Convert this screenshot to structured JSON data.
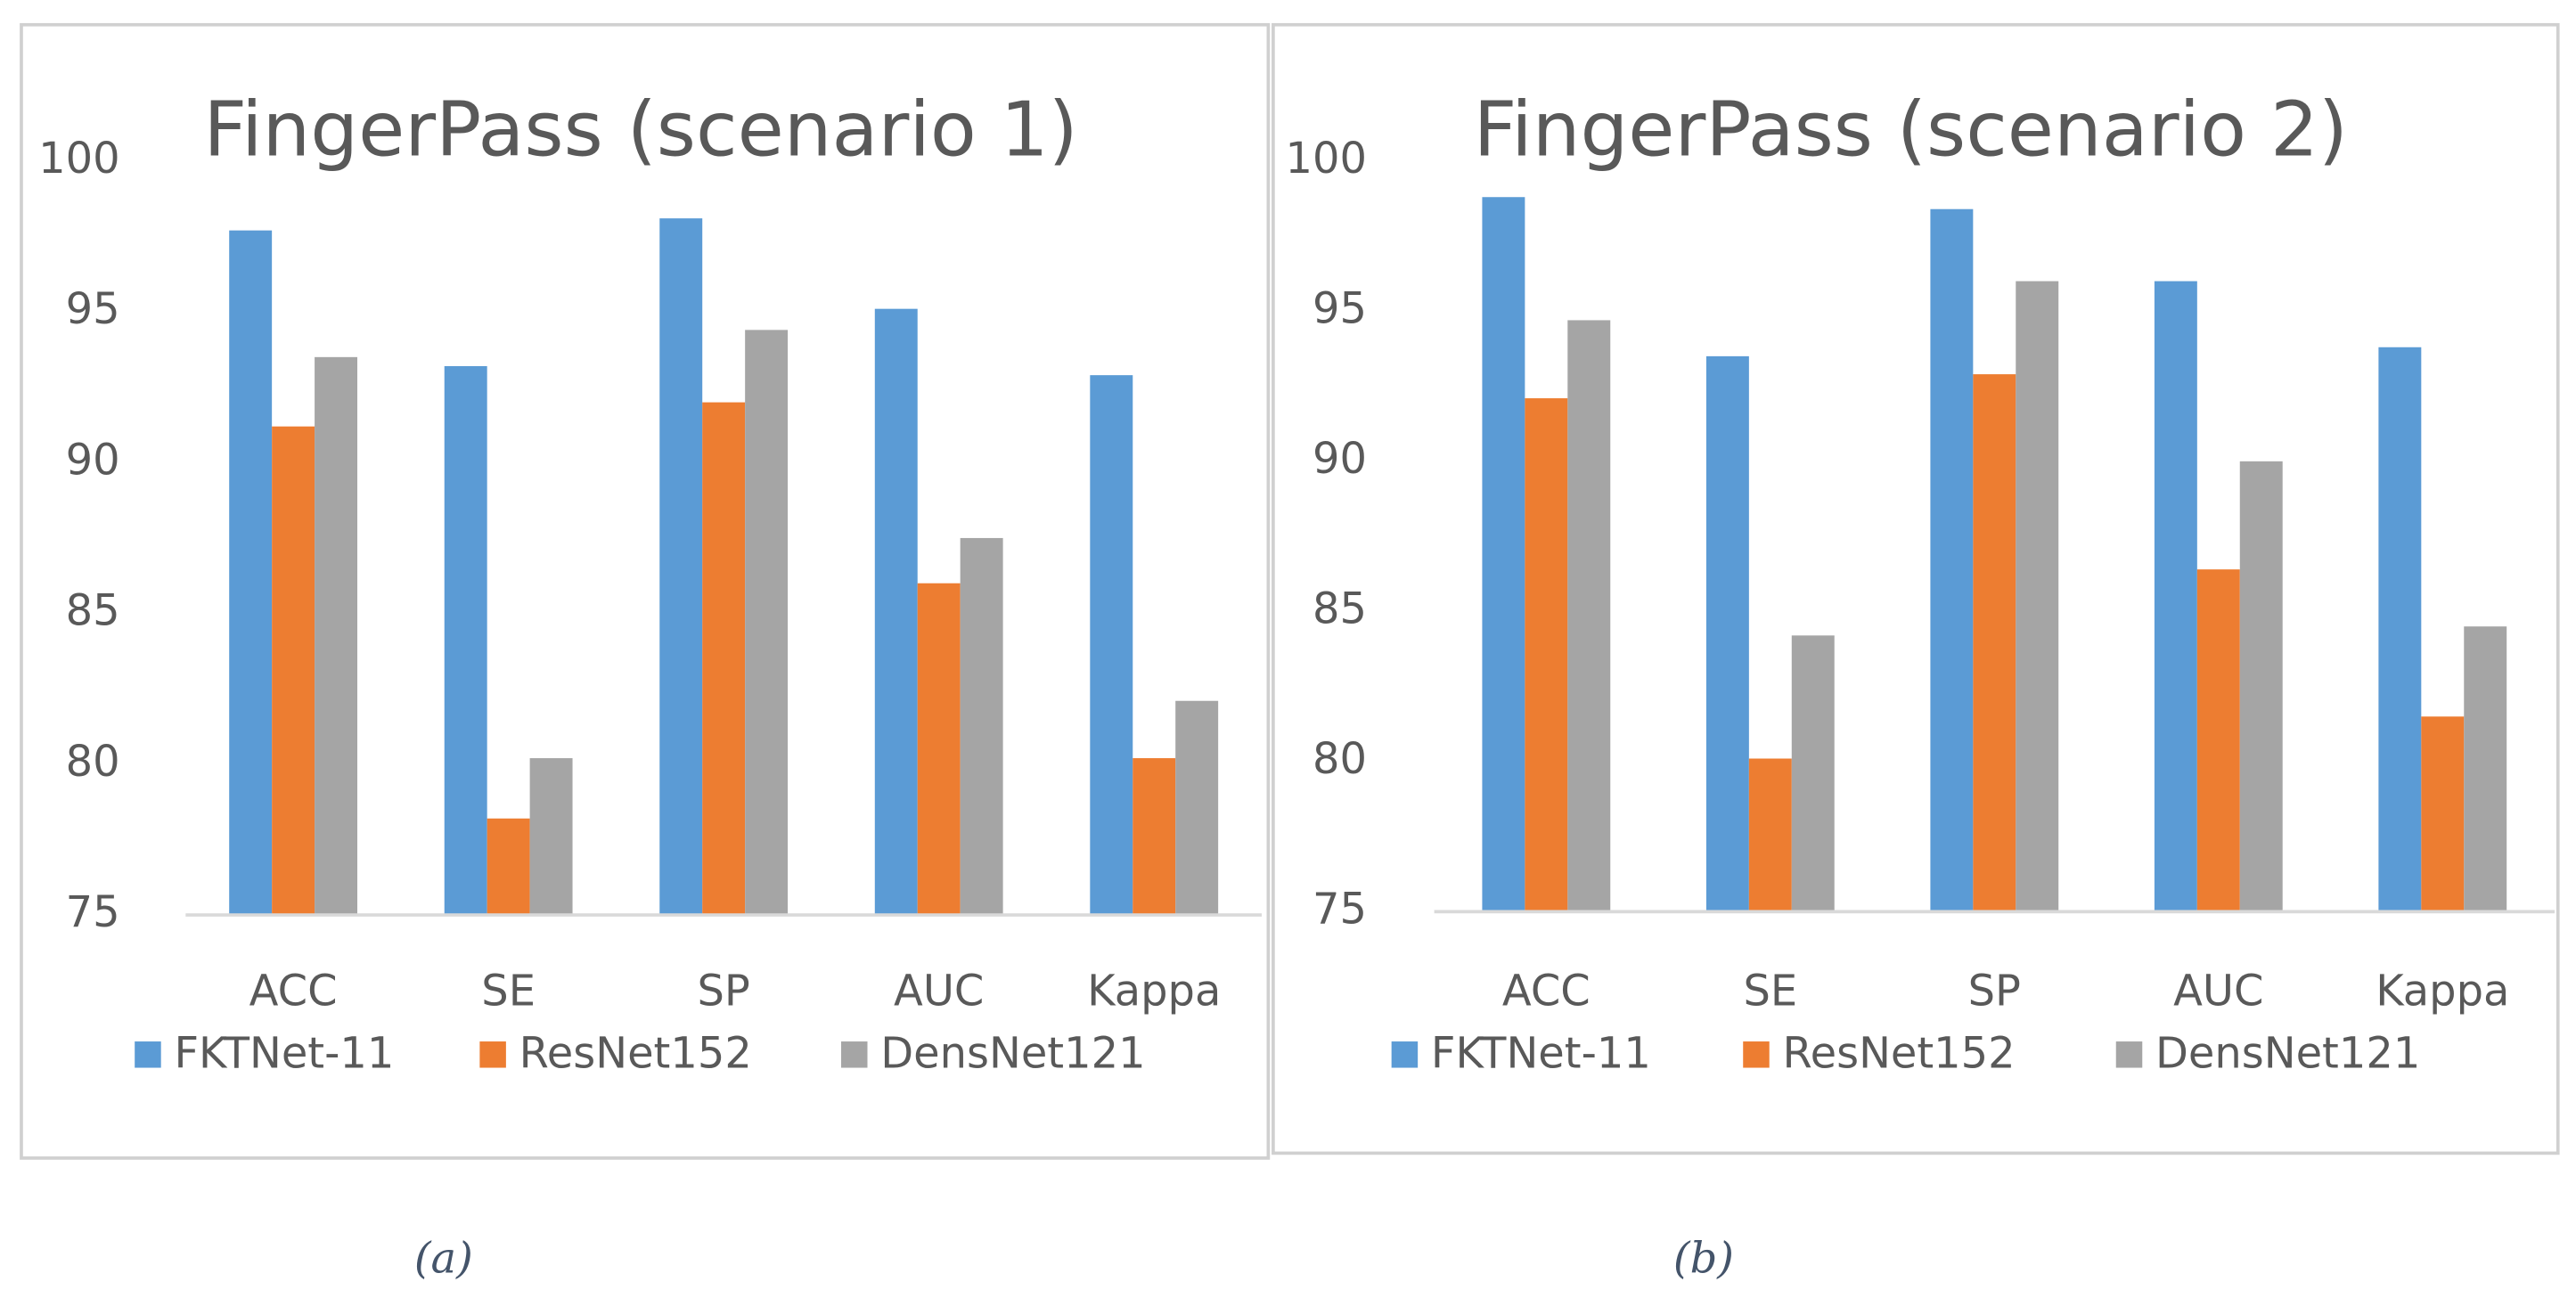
{
  "chart_data": [
    {
      "type": "bar",
      "title": "FingerPass (scenario 1)",
      "caption": "(a)",
      "categories": [
        "ACC",
        "SE",
        "SP",
        "AUC",
        "Kappa"
      ],
      "series": [
        {
          "name": "FKTNet-11",
          "color": "#5b9bd5",
          "values": [
            97.7,
            93.2,
            98.1,
            95.1,
            92.9
          ]
        },
        {
          "name": "ResNet152",
          "color": "#ed7d31",
          "values": [
            91.2,
            78.2,
            92.0,
            86.0,
            80.2
          ]
        },
        {
          "name": "DensNet121",
          "color": "#a5a5a5",
          "values": [
            93.5,
            80.2,
            94.4,
            87.5,
            82.1
          ]
        }
      ],
      "ylim": [
        75,
        100
      ],
      "yticks": [
        75,
        80,
        85,
        90,
        95,
        100
      ],
      "grid": false,
      "legend": "bottom"
    },
    {
      "type": "bar",
      "title": "FingerPass (scenario 2)",
      "caption": "(b)",
      "categories": [
        "ACC",
        "SE",
        "SP",
        "AUC",
        "Kappa"
      ],
      "series": [
        {
          "name": "FKTNet-11",
          "color": "#5b9bd5",
          "values": [
            98.8,
            93.5,
            98.4,
            96.0,
            93.8
          ]
        },
        {
          "name": "ResNet152",
          "color": "#ed7d31",
          "values": [
            92.1,
            80.1,
            92.9,
            86.4,
            81.5
          ]
        },
        {
          "name": "DensNet121",
          "color": "#a5a5a5",
          "values": [
            94.7,
            84.2,
            96.0,
            90.0,
            84.5
          ]
        }
      ],
      "ylim": [
        75,
        100
      ],
      "yticks": [
        75,
        80,
        85,
        90,
        95,
        100
      ],
      "grid": false,
      "legend": "bottom"
    }
  ]
}
